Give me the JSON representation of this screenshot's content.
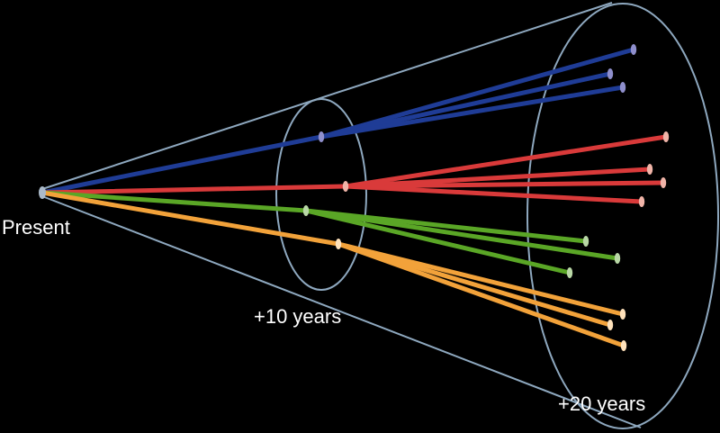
{
  "labels": {
    "present": "Present",
    "ten_years": "+10 years",
    "twenty_years": "+20 years"
  },
  "colors": {
    "background": "#000000",
    "cone_outline": "#8ea8bf",
    "blue": "#1f3c96",
    "red": "#d93a3a",
    "green": "#5aa626",
    "orange": "#f2a23a"
  },
  "futures": [
    {
      "group": "blue",
      "tips": 3
    },
    {
      "group": "red",
      "tips": 4
    },
    {
      "group": "green",
      "tips": 3
    },
    {
      "group": "orange",
      "tips": 3
    }
  ]
}
